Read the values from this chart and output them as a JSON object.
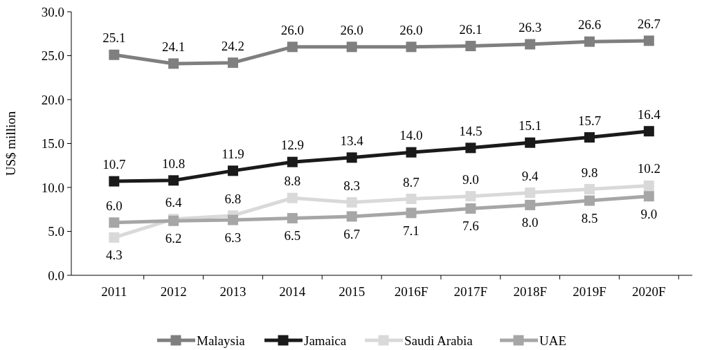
{
  "chart_data": {
    "type": "line",
    "ylabel": "US$ million",
    "categories": [
      "2011",
      "2012",
      "2013",
      "2014",
      "2015",
      "2016F",
      "2017F",
      "2018F",
      "2019F",
      "2020F"
    ],
    "ylim": [
      0,
      30
    ],
    "yticks": [
      {
        "value": 0,
        "label": "0.0"
      },
      {
        "value": 5,
        "label": "5.0"
      },
      {
        "value": 10,
        "label": "10.0"
      },
      {
        "value": 15,
        "label": "15.0"
      },
      {
        "value": 20,
        "label": "20.0"
      },
      {
        "value": 25,
        "label": "25.0"
      },
      {
        "value": 30,
        "label": "30.0"
      }
    ],
    "series": [
      {
        "name": "Malaysia",
        "color": "#7f7f7f",
        "values": [
          25.1,
          24.1,
          24.2,
          26,
          26,
          26,
          26.1,
          26.3,
          26.6,
          26.7
        ],
        "value_labels": [
          "25.1",
          "24.1",
          "24.2",
          "26.0",
          "26.0",
          "26.0",
          "26.1",
          "26.3",
          "26.6",
          "26.7"
        ]
      },
      {
        "name": "Jamaica",
        "color": "#1a1a1a",
        "values": [
          10.7,
          10.8,
          11.9,
          12.9,
          13.4,
          14,
          14.5,
          15.1,
          15.7,
          16.4
        ],
        "value_labels": [
          "10.7",
          "10.8",
          "11.9",
          "12.9",
          "13.4",
          "14.0",
          "14.5",
          "15.1",
          "15.7",
          "16.4"
        ]
      },
      {
        "name": "Saudi Arabia",
        "color": "#d9d9d9",
        "values": [
          4.3,
          6.4,
          6.8,
          8.8,
          8.3,
          8.7,
          9,
          9.4,
          9.8,
          10.2
        ],
        "value_labels": [
          "4.3",
          "6.4",
          "6.8",
          "8.8",
          "8.3",
          "8.7",
          "9.0",
          "9.4",
          "9.8",
          "10.2"
        ]
      },
      {
        "name": "UAE",
        "color": "#a6a6a6",
        "values": [
          6,
          6.2,
          6.3,
          6.5,
          6.7,
          7.1,
          7.6,
          8,
          8.5,
          9
        ],
        "value_labels": [
          "6.0",
          "6.2",
          "6.3",
          "6.5",
          "6.7",
          "7.1",
          "7.6",
          "8.0",
          "8.5",
          "9.0"
        ]
      }
    ],
    "marker": "square",
    "legend": "bottom",
    "grid": false
  }
}
